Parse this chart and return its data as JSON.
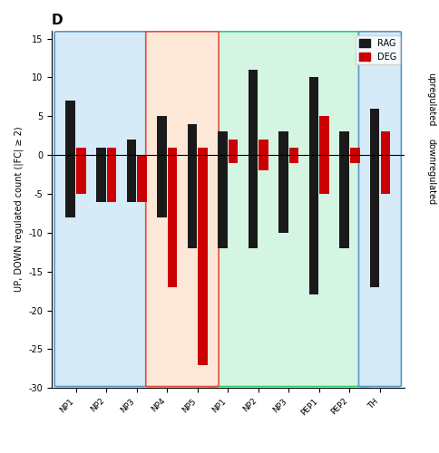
{
  "title": "D",
  "ylabel": "UP, DOWN regulated count (|FC| ≥ 2)",
  "ylabel_right": "upregulated\ndownregulated",
  "categories": [
    "NP1",
    "NP2",
    "NP3",
    "NP4",
    "NP5",
    "NP1",
    "NP2",
    "NP3",
    "PEP1",
    "PEP2",
    "TH"
  ],
  "cat_labels": [
    "NP1",
    "NP2",
    "NP3",
    "NP4",
    "NP5",
    "NP1",
    "NP2",
    "NP3",
    "PEP1",
    "PEP2",
    "TH"
  ],
  "rag_up": [
    7,
    1,
    2,
    5,
    4,
    3,
    11,
    3,
    10,
    3,
    6
  ],
  "rag_down": [
    -8,
    -6,
    -6,
    -8,
    -12,
    -12,
    -12,
    -10,
    -18,
    -12,
    -17
  ],
  "deg_up": [
    1,
    1,
    0,
    1,
    1,
    2,
    2,
    1,
    5,
    1,
    3
  ],
  "deg_down": [
    -5,
    -6,
    -6,
    -17,
    -27,
    -1,
    -2,
    -1,
    -5,
    -1,
    -5
  ],
  "rag_color": "#1a1a1a",
  "deg_color": "#cc0000",
  "ylim": [
    -30,
    16
  ],
  "yticks": [
    -30,
    -25,
    -20,
    -15,
    -10,
    -5,
    0,
    5,
    10,
    15
  ],
  "mechanoreception_indices": [
    0,
    1,
    2,
    3,
    4
  ],
  "proprioception_indices": [
    3,
    4
  ],
  "nociception_indices": [
    5,
    6,
    7,
    8,
    9
  ],
  "th_index": 10,
  "mech_bg": "#d6eaf8",
  "prop_bg": "#fde8d8",
  "noci_bg": "#d5f5e3",
  "outer_bg": "#d6eaf8",
  "bar_width": 0.35
}
